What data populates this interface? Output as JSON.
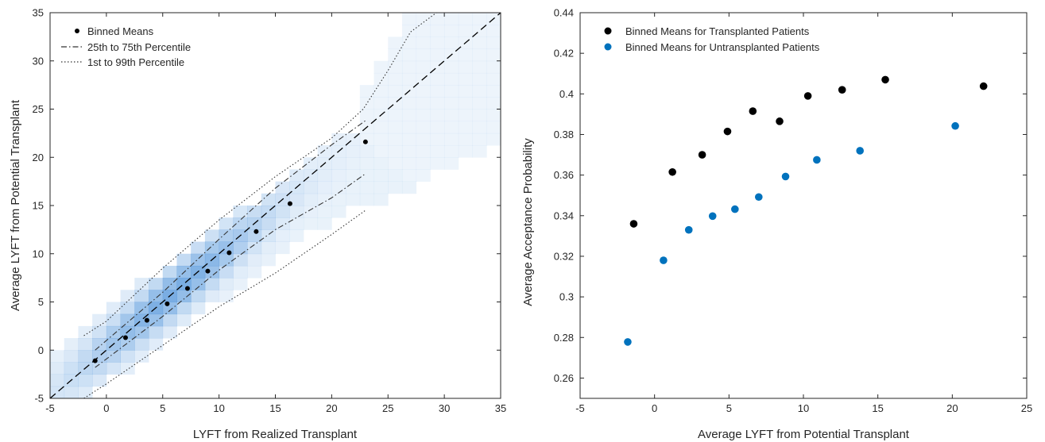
{
  "chart_data": [
    {
      "type": "scatter",
      "title": "",
      "xlabel": "LYFT from Realized Transplant",
      "ylabel": "Average LYFT from Potential Transplant",
      "xlim": [
        -5,
        35
      ],
      "ylim": [
        -5,
        35
      ],
      "xticks": [
        "-5",
        "0",
        "5",
        "10",
        "15",
        "20",
        "25",
        "30",
        "35"
      ],
      "yticks": [
        "-5",
        "0",
        "5",
        "10",
        "15",
        "20",
        "25",
        "30",
        "35"
      ],
      "background": "2D density heatmap (light to medium blue) concentrated along the 45-degree line",
      "density_color": "#4a90d9",
      "legend_position": "top-left",
      "legend": [
        {
          "label": "Binned Means",
          "style": "marker"
        },
        {
          "label": "25th to 75th Percentile",
          "style": "dash-dot"
        },
        {
          "label": "1st to 99th Percentile",
          "style": "dotted"
        }
      ],
      "series": [
        {
          "name": "Binned Means",
          "x": [
            -1,
            1.7,
            3.6,
            5.4,
            7.2,
            9.0,
            10.9,
            13.3,
            16.3,
            23.0
          ],
          "y": [
            -1.1,
            1.3,
            3.1,
            4.8,
            6.4,
            8.2,
            10.1,
            12.3,
            15.2,
            21.6
          ]
        },
        {
          "name": "25th to 75th Percentile (upper)",
          "x": [
            -1,
            5,
            10,
            15,
            20,
            23
          ],
          "y": [
            0.0,
            6.0,
            11.5,
            16.8,
            21.3,
            23.8
          ]
        },
        {
          "name": "25th to 75th Percentile (lower)",
          "x": [
            -1,
            5,
            10,
            15,
            20,
            23
          ],
          "y": [
            -1.8,
            3.5,
            8.3,
            12.5,
            15.8,
            18.3
          ]
        },
        {
          "name": "1st to 99th Percentile (upper)",
          "x": [
            -2,
            0,
            5,
            10,
            15,
            20,
            22.8,
            25,
            27,
            29.3
          ],
          "y": [
            1.5,
            3.0,
            8.5,
            13.5,
            18.0,
            22.0,
            25.0,
            29.0,
            33.0,
            35.0
          ]
        },
        {
          "name": "1st to 99th Percentile (lower)",
          "x": [
            -2,
            0,
            5,
            10,
            15,
            20,
            23
          ],
          "y": [
            -5.0,
            -3.5,
            0.5,
            4.5,
            8.0,
            12.0,
            14.5
          ]
        },
        {
          "name": "45-degree line",
          "x": [
            -5,
            35
          ],
          "y": [
            -5,
            35
          ]
        }
      ]
    },
    {
      "type": "scatter",
      "title": "",
      "xlabel": "Average LYFT from Potential Transplant",
      "ylabel": "Average Acceptance Probability",
      "xlim": [
        -5,
        25
      ],
      "ylim": [
        0.25,
        0.44
      ],
      "xticks": [
        "-5",
        "0",
        "5",
        "10",
        "15",
        "20",
        "25"
      ],
      "yticks": [
        "0.26",
        "0.28",
        "0.3",
        "0.32",
        "0.34",
        "0.36",
        "0.38",
        "0.4",
        "0.42",
        "0.44"
      ],
      "legend_position": "top-left",
      "series": [
        {
          "name": "Binned Means for Transplanted Patients",
          "color": "#000000",
          "x": [
            -1.4,
            1.2,
            3.2,
            4.9,
            6.6,
            8.4,
            10.3,
            12.6,
            15.5,
            22.1
          ],
          "y": [
            0.336,
            0.3615,
            0.37,
            0.3815,
            0.3915,
            0.3865,
            0.399,
            0.402,
            0.407,
            0.4038
          ]
        },
        {
          "name": "Binned Means for Untransplanted Patients",
          "color": "#0072BD",
          "x": [
            -1.8,
            0.6,
            2.3,
            3.9,
            5.4,
            7.0,
            8.8,
            10.9,
            13.8,
            20.2
          ],
          "y": [
            0.2778,
            0.318,
            0.333,
            0.3398,
            0.3432,
            0.3492,
            0.3593,
            0.3675,
            0.372,
            0.3842
          ]
        }
      ]
    }
  ]
}
